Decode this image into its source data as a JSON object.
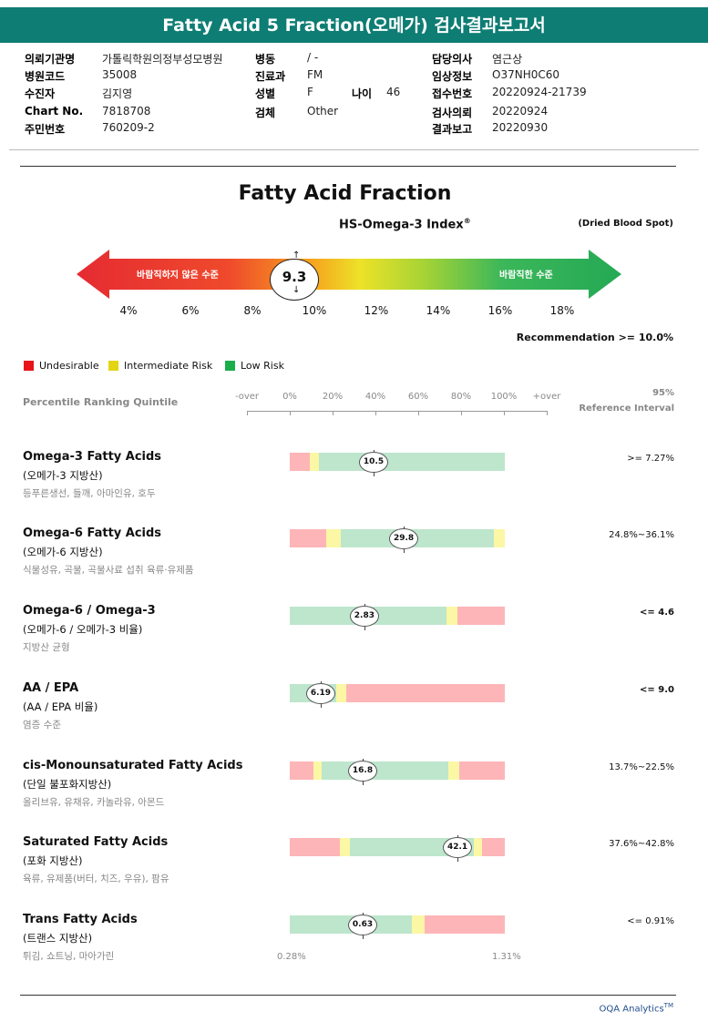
{
  "report": {
    "title": "Fatty Acid 5 Fraction(오메가) 검사결과보고서"
  },
  "header": {
    "c1": [
      {
        "label": "의뢰기관명",
        "value": "가톨릭학원의정부성모병원"
      },
      {
        "label": "병원코드",
        "value": "35008"
      },
      {
        "label": "수진자",
        "value": "김지영"
      },
      {
        "label": "Chart No.",
        "value": "7818708"
      },
      {
        "label": "주민번호",
        "value": "760209-2"
      }
    ],
    "c2": [
      {
        "label": "병동",
        "value": "/ -"
      },
      {
        "label": "진료과",
        "value": "FM"
      },
      {
        "label": "성별",
        "value": "F"
      },
      {
        "label": "검체",
        "value": "Other"
      }
    ],
    "age": {
      "label": "나이",
      "value": "46"
    },
    "c3": [
      {
        "label": "담당의사",
        "value": "염근상"
      },
      {
        "label": "임상정보",
        "value": "O37NH0C60"
      },
      {
        "label": "접수번호",
        "value": "20220924-21739"
      },
      {
        "label": "검사의뢰",
        "value": "20220924"
      },
      {
        "label": "결과보고",
        "value": "20220930"
      }
    ]
  },
  "fraction": {
    "title": "Fatty Acid Fraction",
    "subtitle": "HS-Omega-3 Index",
    "reg": "®",
    "specimen": "(Dried Blood Spot)",
    "arrow_left": "바람직하지 않은 수준",
    "arrow_right": "바람직한 수준",
    "value": "9.3",
    "scale": [
      "4%",
      "6%",
      "8%",
      "10%",
      "12%",
      "14%",
      "16%",
      "18%"
    ],
    "recommendation": "Recommendation  >= 10.0%"
  },
  "legend": [
    {
      "label": "Undesirable",
      "color": "#e8141c"
    },
    {
      "label": "Intermediate Risk",
      "color": "#e3d514"
    },
    {
      "label": "Low Risk",
      "color": "#1aae4a"
    }
  ],
  "quintile": {
    "label": "Percentile Ranking Quintile",
    "ticks": [
      "-over",
      "0%",
      "20%",
      "40%",
      "60%",
      "80%",
      "100%",
      "+over"
    ],
    "ref_line1": "95%",
    "ref_line2": "Reference Interval"
  },
  "rows": [
    {
      "en": "Omega-3 Fatty Acids",
      "ko": "(오메가-3 지방산)",
      "food": "등푸른생선, 들깨, 아마인유, 호두",
      "value": "10.5",
      "pos": 0.39,
      "ref": ">= 7.27%",
      "ref_bold": false,
      "segments": [
        [
          0,
          0.093,
          "r"
        ],
        [
          0.093,
          0.136,
          "y"
        ],
        [
          0.136,
          1,
          "g"
        ]
      ]
    },
    {
      "en": "Omega-6 Fatty Acids",
      "ko": "(오메가-6 지방산)",
      "food": "식물성유, 곡물, 곡물사료 섭취 육류·유제품",
      "value": "29.8",
      "pos": 0.53,
      "ref": "24.8%~36.1%",
      "ref_bold": false,
      "segments": [
        [
          0,
          0.17,
          "r"
        ],
        [
          0.17,
          0.237,
          "y"
        ],
        [
          0.237,
          0.949,
          "g"
        ],
        [
          0.949,
          1,
          "y"
        ]
      ]
    },
    {
      "en": "Omega-6 / Omega-3",
      "ko": "(오메가-6 / 오메가-3 비율)",
      "food": "지방산 균형",
      "value": "2.83",
      "pos": 0.347,
      "ref": "<= 4.6",
      "ref_bold": true,
      "segments": [
        [
          0,
          0.729,
          "g"
        ],
        [
          0.729,
          0.78,
          "y"
        ],
        [
          0.78,
          1,
          "r"
        ]
      ]
    },
    {
      "en": "AA / EPA",
      "ko": "(AA / EPA 비율)",
      "food": "염증 수준",
      "value": "6.19",
      "pos": 0.144,
      "ref": "<= 9.0",
      "ref_bold": true,
      "segments": [
        [
          0,
          0.216,
          "g"
        ],
        [
          0.216,
          0.263,
          "y"
        ],
        [
          0.263,
          1,
          "r"
        ]
      ]
    },
    {
      "en": "cis-Monounsaturated Fatty Acids",
      "ko": "(단일 불포화지방산)",
      "food": "올리브유, 유채유, 카놀라유, 아몬드",
      "value": "16.8",
      "pos": 0.339,
      "ref": "13.7%~22.5%",
      "ref_bold": false,
      "segments": [
        [
          0,
          0.11,
          "r"
        ],
        [
          0.11,
          0.148,
          "y"
        ],
        [
          0.148,
          0.737,
          "g"
        ],
        [
          0.737,
          0.788,
          "y"
        ],
        [
          0.788,
          1,
          "r"
        ]
      ]
    },
    {
      "en": "Saturated Fatty Acids",
      "ko": "(포화 지방산)",
      "food": "육류, 유제품(버터, 치즈, 우유), 팜유",
      "value": "42.1",
      "pos": 0.78,
      "ref": "37.6%~42.8%",
      "ref_bold": false,
      "segments": [
        [
          0,
          0.233,
          "r"
        ],
        [
          0.233,
          0.28,
          "y"
        ],
        [
          0.28,
          0.856,
          "g"
        ],
        [
          0.856,
          0.894,
          "y"
        ],
        [
          0.894,
          1,
          "r"
        ]
      ]
    },
    {
      "en": "Trans Fatty Acids",
      "ko": "(트랜스 지방산)",
      "food": "튀김, 쇼트닝, 마아가린",
      "value": "0.63",
      "pos": 0.339,
      "ref": "<= 0.91%",
      "ref_bold": false,
      "segments": [
        [
          0,
          0.568,
          "g"
        ],
        [
          0.568,
          0.627,
          "y"
        ],
        [
          0.627,
          1,
          "r"
        ]
      ]
    }
  ],
  "trans_scale": {
    "min": "0.28%",
    "max": "1.31%"
  },
  "footer": {
    "text": "OQA Analytics",
    "tm": "TM"
  },
  "palette": {
    "r": "#fdb5b8",
    "y": "#fbf7a5",
    "g": "#bde6cc"
  }
}
